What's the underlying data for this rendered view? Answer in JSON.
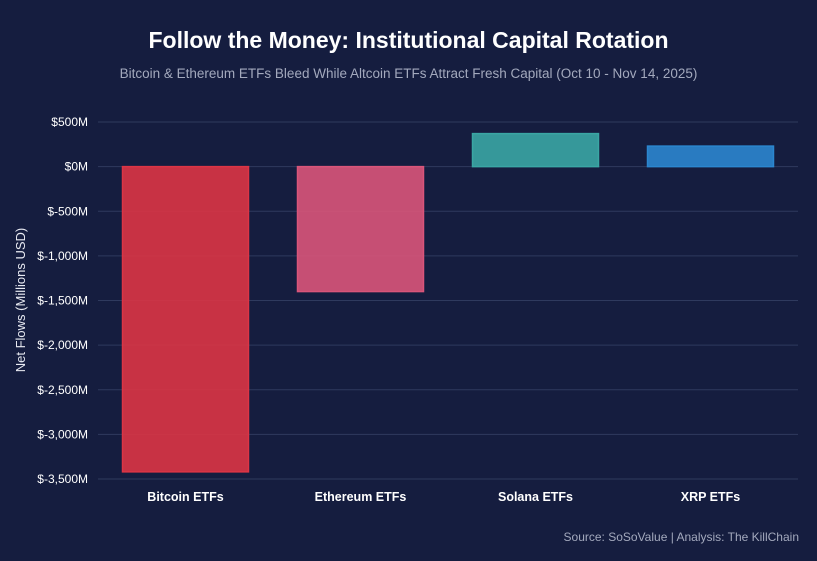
{
  "chart_data": {
    "type": "bar",
    "title": "Follow the Money: Institutional Capital Rotation",
    "subtitle": "Bitcoin & Ethereum ETFs Bleed While Altcoin ETFs Attract Fresh Capital (Oct 10 - Nov 14, 2025)",
    "ylabel": "Net Flows (Millions USD)",
    "xlabel": "",
    "categories": [
      "Bitcoin ETFs",
      "Ethereum ETFs",
      "Solana ETFs",
      "XRP ETFs"
    ],
    "values": [
      -3420,
      -1400,
      370,
      230
    ],
    "colors": [
      "#dc3545",
      "#d9557a",
      "#3aa6a4",
      "#2b86cf"
    ],
    "ylim": [
      -3500,
      500
    ],
    "yticks": [
      500,
      0,
      -500,
      -1000,
      -1500,
      -2000,
      -2500,
      -3000,
      -3500
    ],
    "ytick_labels": [
      "$500M",
      "$0M",
      "$-500M",
      "$-1,000M",
      "$-1,500M",
      "$-2,000M",
      "$-2,500M",
      "$-3,000M",
      "$-3,500M"
    ],
    "grid": true,
    "legend": "none"
  },
  "footer": {
    "source": "Source: SoSoValue | Analysis: The KillChain"
  }
}
